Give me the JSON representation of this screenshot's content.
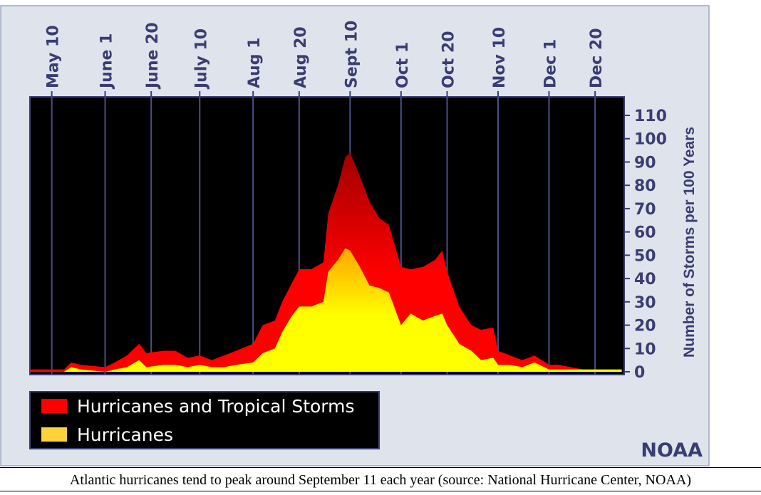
{
  "chart_data": {
    "type": "area",
    "title": "",
    "ylabel": "Number of Storms per 100 Years",
    "xlabel": "",
    "ylim": [
      0,
      110
    ],
    "yticks": [
      0,
      10,
      20,
      30,
      40,
      50,
      60,
      70,
      80,
      90,
      100,
      110
    ],
    "xlim": [
      "May 1",
      "Dec 31"
    ],
    "date_ticks": [
      {
        "label": "May 10",
        "date": "05-10"
      },
      {
        "label": "June 1",
        "date": "06-01"
      },
      {
        "label": "June 20",
        "date": "06-20"
      },
      {
        "label": "July 10",
        "date": "07-10"
      },
      {
        "label": "Aug 1",
        "date": "08-01"
      },
      {
        "label": "Aug 20",
        "date": "08-20"
      },
      {
        "label": "Sept 10",
        "date": "09-10"
      },
      {
        "label": "Oct 1",
        "date": "10-01"
      },
      {
        "label": "Oct 20",
        "date": "10-20"
      },
      {
        "label": "Nov 10",
        "date": "11-10"
      },
      {
        "label": "Dec 1",
        "date": "12-01"
      },
      {
        "label": "Dec 20",
        "date": "12-20"
      }
    ],
    "series": [
      {
        "name": "Hurricanes and Tropical Storms",
        "color": "#ff0000",
        "peak_color": "#a00000",
        "points": [
          [
            "05-01",
            1
          ],
          [
            "05-10",
            1
          ],
          [
            "05-15",
            1
          ],
          [
            "05-18",
            4
          ],
          [
            "05-22",
            3
          ],
          [
            "06-01",
            2
          ],
          [
            "06-05",
            4
          ],
          [
            "06-10",
            7
          ],
          [
            "06-15",
            12
          ],
          [
            "06-18",
            8
          ],
          [
            "06-25",
            9
          ],
          [
            "06-30",
            9
          ],
          [
            "07-05",
            6
          ],
          [
            "07-10",
            7
          ],
          [
            "07-15",
            5
          ],
          [
            "07-20",
            7
          ],
          [
            "07-25",
            9
          ],
          [
            "08-01",
            12
          ],
          [
            "08-05",
            20
          ],
          [
            "08-10",
            22
          ],
          [
            "08-13",
            30
          ],
          [
            "08-17",
            38
          ],
          [
            "08-20",
            44
          ],
          [
            "08-25",
            44
          ],
          [
            "08-30",
            47
          ],
          [
            "09-01",
            68
          ],
          [
            "09-05",
            80
          ],
          [
            "09-08",
            92
          ],
          [
            "09-10",
            94
          ],
          [
            "09-14",
            84
          ],
          [
            "09-18",
            73
          ],
          [
            "09-22",
            66
          ],
          [
            "09-26",
            63
          ],
          [
            "10-01",
            45
          ],
          [
            "10-05",
            44
          ],
          [
            "10-10",
            45
          ],
          [
            "10-15",
            48
          ],
          [
            "10-18",
            52
          ],
          [
            "10-20",
            43
          ],
          [
            "10-25",
            28
          ],
          [
            "10-30",
            20
          ],
          [
            "11-03",
            18
          ],
          [
            "11-08",
            19
          ],
          [
            "11-10",
            9
          ],
          [
            "11-15",
            7
          ],
          [
            "11-20",
            5
          ],
          [
            "11-25",
            7
          ],
          [
            "12-01",
            3
          ],
          [
            "12-05",
            3
          ],
          [
            "12-10",
            2
          ],
          [
            "12-15",
            1
          ],
          [
            "12-20",
            1
          ],
          [
            "12-25",
            1
          ],
          [
            "12-31",
            1
          ]
        ]
      },
      {
        "name": "Hurricanes",
        "color": "#ffff00",
        "peak_color": "#ffa500",
        "points": [
          [
            "05-01",
            0
          ],
          [
            "05-15",
            0
          ],
          [
            "05-18",
            2
          ],
          [
            "05-22",
            1
          ],
          [
            "06-01",
            0
          ],
          [
            "06-05",
            1
          ],
          [
            "06-10",
            2
          ],
          [
            "06-15",
            5
          ],
          [
            "06-18",
            2
          ],
          [
            "06-25",
            3
          ],
          [
            "06-30",
            3
          ],
          [
            "07-05",
            2
          ],
          [
            "07-10",
            3
          ],
          [
            "07-15",
            2
          ],
          [
            "07-20",
            2
          ],
          [
            "07-25",
            3
          ],
          [
            "08-01",
            4
          ],
          [
            "08-05",
            8
          ],
          [
            "08-10",
            10
          ],
          [
            "08-13",
            17
          ],
          [
            "08-17",
            24
          ],
          [
            "08-20",
            28
          ],
          [
            "08-25",
            28
          ],
          [
            "08-30",
            30
          ],
          [
            "09-01",
            43
          ],
          [
            "09-05",
            48
          ],
          [
            "09-08",
            53
          ],
          [
            "09-10",
            52
          ],
          [
            "09-14",
            45
          ],
          [
            "09-18",
            37
          ],
          [
            "09-22",
            36
          ],
          [
            "09-26",
            34
          ],
          [
            "10-01",
            20
          ],
          [
            "10-05",
            25
          ],
          [
            "10-10",
            22
          ],
          [
            "10-15",
            24
          ],
          [
            "10-18",
            25
          ],
          [
            "10-20",
            20
          ],
          [
            "10-25",
            12
          ],
          [
            "10-30",
            9
          ],
          [
            "11-03",
            5
          ],
          [
            "11-08",
            6
          ],
          [
            "11-10",
            3
          ],
          [
            "11-15",
            3
          ],
          [
            "11-20",
            2
          ],
          [
            "11-25",
            4
          ],
          [
            "12-01",
            1
          ],
          [
            "12-10",
            1
          ],
          [
            "12-20",
            1
          ],
          [
            "12-31",
            1
          ]
        ]
      }
    ],
    "legend": {
      "placement": "bottom-left"
    },
    "grid": {
      "vertical": true,
      "horizontal": false
    },
    "colors": {
      "plot_background": "#000000",
      "frame": "#dfe4ec",
      "axis_text": "#3a3d72",
      "gridline": "#4b4f88"
    }
  },
  "branding": {
    "logo_text": "NOAA"
  },
  "caption": "Atlantic hurricanes tend to peak around September 11 each year (source: National Hurricane Center, NOAA)"
}
